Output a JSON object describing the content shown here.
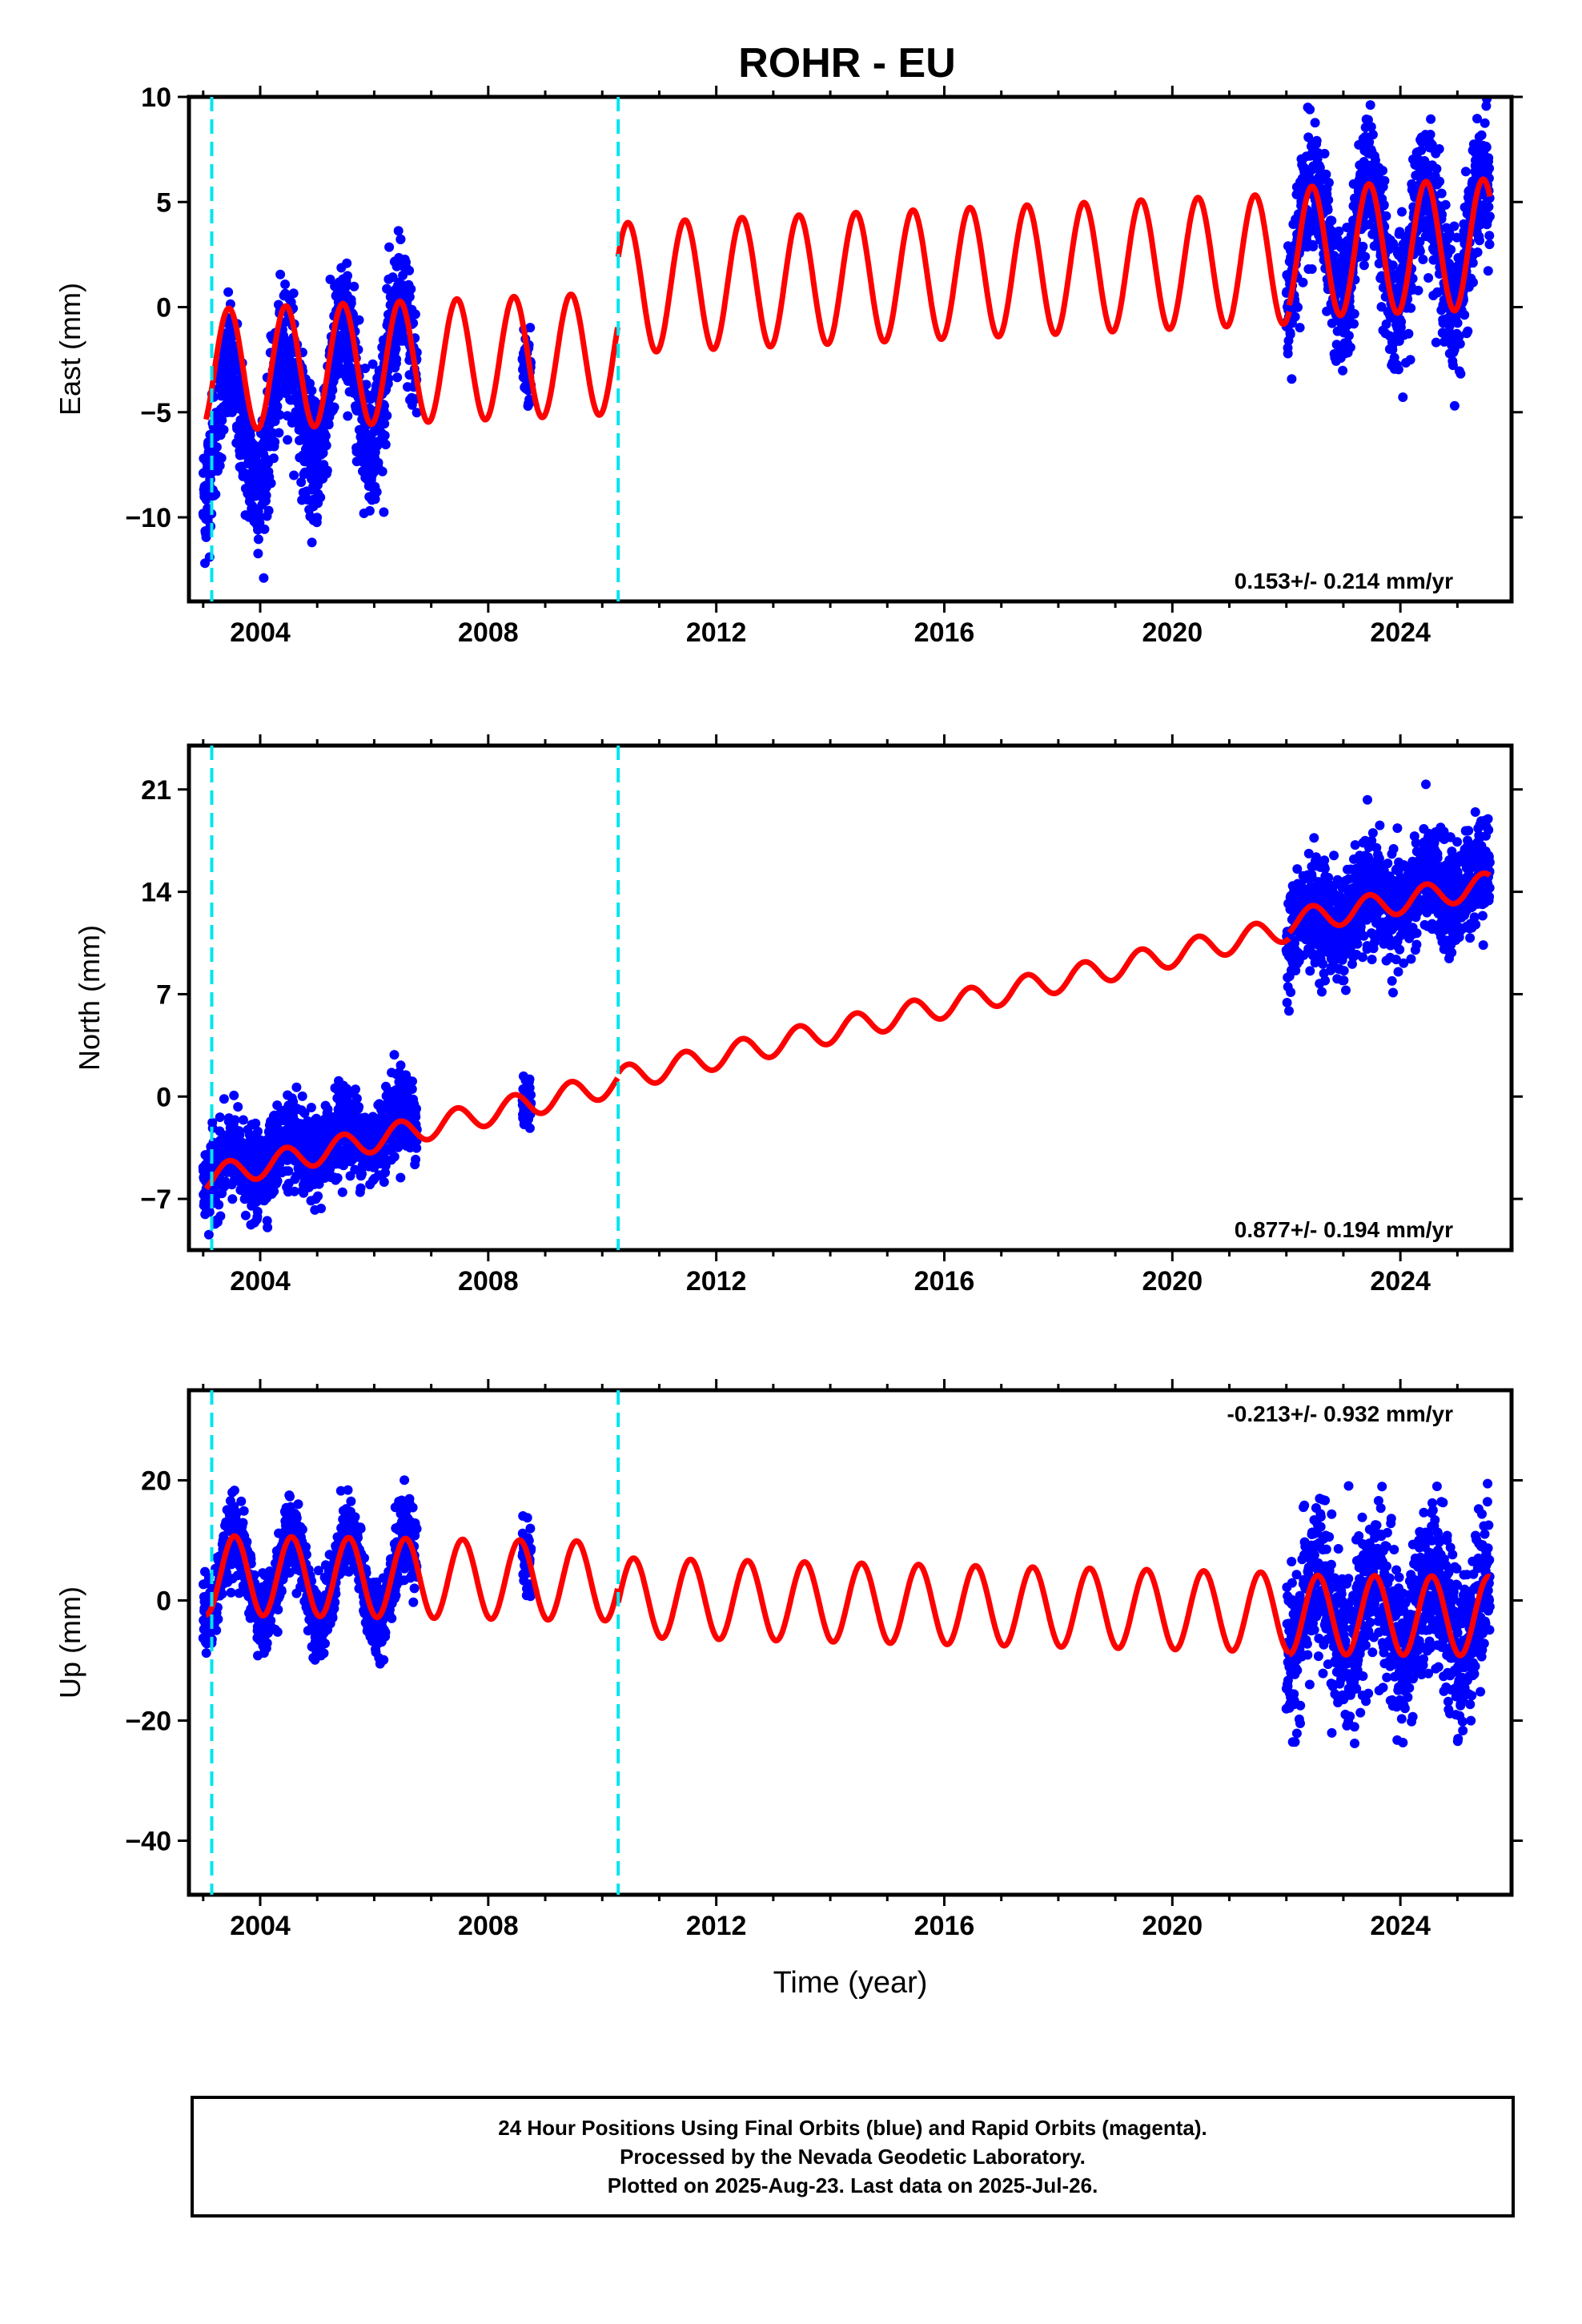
{
  "title": "ROHR - EU",
  "colors": {
    "data": "#0000ff",
    "model": "#ff0000",
    "events": "#00e5ee",
    "frame": "#000000"
  },
  "xaxis": {
    "label": "Time (year)",
    "range": [
      2002.75,
      2025.95
    ],
    "ticks": [
      "2004",
      "2008",
      "2012",
      "2016",
      "2020",
      "2024"
    ],
    "tick_values": [
      2004,
      2008,
      2012,
      2016,
      2020,
      2024
    ]
  },
  "event_lines": [
    2003.15,
    2010.28
  ],
  "panels": [
    {
      "id": "east",
      "ylabel": "East (mm)",
      "ylim": [
        -14,
        10
      ],
      "yticks": [
        "10",
        "5",
        "0",
        "−5",
        "−10"
      ],
      "ytick_values": [
        10,
        5,
        0,
        -5,
        -10
      ],
      "rate": "0.153+/- 0.214 mm/yr",
      "rate_position": "bottom-right"
    },
    {
      "id": "north",
      "ylabel": "North (mm)",
      "ylim": [
        -10.5,
        24
      ],
      "yticks": [
        "21",
        "14",
        "7",
        "0",
        "−7"
      ],
      "ytick_values": [
        21,
        14,
        7,
        0,
        -7
      ],
      "rate": "0.877+/- 0.194 mm/yr",
      "rate_position": "bottom-right"
    },
    {
      "id": "up",
      "ylabel": "Up (mm)",
      "ylim": [
        -49,
        35
      ],
      "yticks": [
        "20",
        "0",
        "−20",
        "−40"
      ],
      "ytick_values": [
        20,
        0,
        -20,
        -40
      ],
      "rate": "-0.213+/- 0.932 mm/yr",
      "rate_position": "top-right"
    }
  ],
  "chart_data": [
    {
      "type": "scatter",
      "panel": "east",
      "series": [
        {
          "name": "Final Orbits (blue)",
          "segments": [
            {
              "start": 2003.0,
              "end": 2006.75,
              "trend": [
                -6.5,
                -2.5
              ],
              "amplitude": 3.0,
              "peak_phase": 0.45,
              "noise": 1.5
            },
            {
              "start": 2008.6,
              "end": 2008.75,
              "trend": [
                -3.0,
                -3.0
              ],
              "amplitude": 0.5,
              "peak_phase": 0.45,
              "noise": 1.0
            },
            {
              "start": 2022.0,
              "end": 2025.57,
              "trend": [
                3.0,
                3.0
              ],
              "amplitude": 3.0,
              "peak_phase": 0.45,
              "noise": 1.6
            }
          ]
        },
        {
          "name": "model",
          "segments": [
            {
              "start": 2003.05,
              "end": 2010.27,
              "trend": [
                -3.0,
                -2.2
              ],
              "amplitude": 2.9,
              "peak_phase": 0.45
            },
            {
              "start": 2010.28,
              "end": 2022.05,
              "trend": [
                0.9,
                2.3
              ],
              "amplitude": 3.1,
              "peak_phase": 0.45
            },
            {
              "start": 2022.05,
              "end": 2025.57,
              "trend": [
                2.6,
                3.0
              ],
              "amplitude": 3.1,
              "peak_phase": 0.45
            }
          ]
        }
      ]
    },
    {
      "type": "scatter",
      "panel": "north",
      "series": [
        {
          "name": "Final Orbits (blue)",
          "segments": [
            {
              "start": 2003.0,
              "end": 2006.75,
              "trend": [
                -5.5,
                -1.5
              ],
              "amplitude": 1.0,
              "peak_phase": 0.45,
              "noise": 1.4
            },
            {
              "start": 2008.6,
              "end": 2008.75,
              "trend": [
                -0.8,
                -0.8
              ],
              "amplitude": 0.0,
              "peak_phase": 0.45,
              "noise": 0.8
            },
            {
              "start": 2022.0,
              "end": 2025.57,
              "trend": [
                11.5,
                15.0
              ],
              "amplitude": 1.0,
              "peak_phase": 0.45,
              "noise": 1.8
            }
          ]
        },
        {
          "name": "model",
          "segments": [
            {
              "start": 2003.05,
              "end": 2010.27,
              "trend": [
                -5.6,
                0.9
              ],
              "amplitude": 0.85,
              "peak_phase": 0.45
            },
            {
              "start": 2010.28,
              "end": 2022.05,
              "trend": [
                1.2,
                11.5
              ],
              "amplitude": 0.85,
              "peak_phase": 0.45
            },
            {
              "start": 2022.05,
              "end": 2025.57,
              "trend": [
                11.9,
                14.5
              ],
              "amplitude": 0.85,
              "peak_phase": 0.45
            }
          ]
        }
      ]
    },
    {
      "type": "scatter",
      "panel": "up",
      "series": [
        {
          "name": "Final Orbits (blue)",
          "segments": [
            {
              "start": 2003.0,
              "end": 2006.75,
              "trend": [
                4.0,
                3.5
              ],
              "amplitude": 7.0,
              "peak_phase": 0.55,
              "noise": 3.0
            },
            {
              "start": 2008.6,
              "end": 2008.75,
              "trend": [
                5.0,
                5.0
              ],
              "amplitude": 3.0,
              "peak_phase": 0.55,
              "noise": 3.0
            },
            {
              "start": 2022.0,
              "end": 2025.57,
              "trend": [
                -2.5,
                -2.5
              ],
              "amplitude": 6.5,
              "peak_phase": 0.55,
              "noise": 6.5
            }
          ]
        },
        {
          "name": "model",
          "segments": [
            {
              "start": 2003.05,
              "end": 2010.27,
              "trend": [
                4.2,
                3.2
              ],
              "amplitude": 6.6,
              "peak_phase": 0.55
            },
            {
              "start": 2010.28,
              "end": 2022.05,
              "trend": [
                0.5,
                -2.0
              ],
              "amplitude": 6.6,
              "peak_phase": 0.55
            },
            {
              "start": 2022.05,
              "end": 2025.57,
              "trend": [
                -2.4,
                -2.6
              ],
              "amplitude": 6.6,
              "peak_phase": 0.55
            }
          ]
        }
      ]
    }
  ],
  "footer": {
    "line1": "24 Hour Positions Using Final Orbits (blue) and Rapid Orbits (magenta).",
    "line2": "Processed by the Nevada Geodetic Laboratory.",
    "line3": "Plotted on 2025-Aug-23. Last data on 2025-Jul-26."
  }
}
